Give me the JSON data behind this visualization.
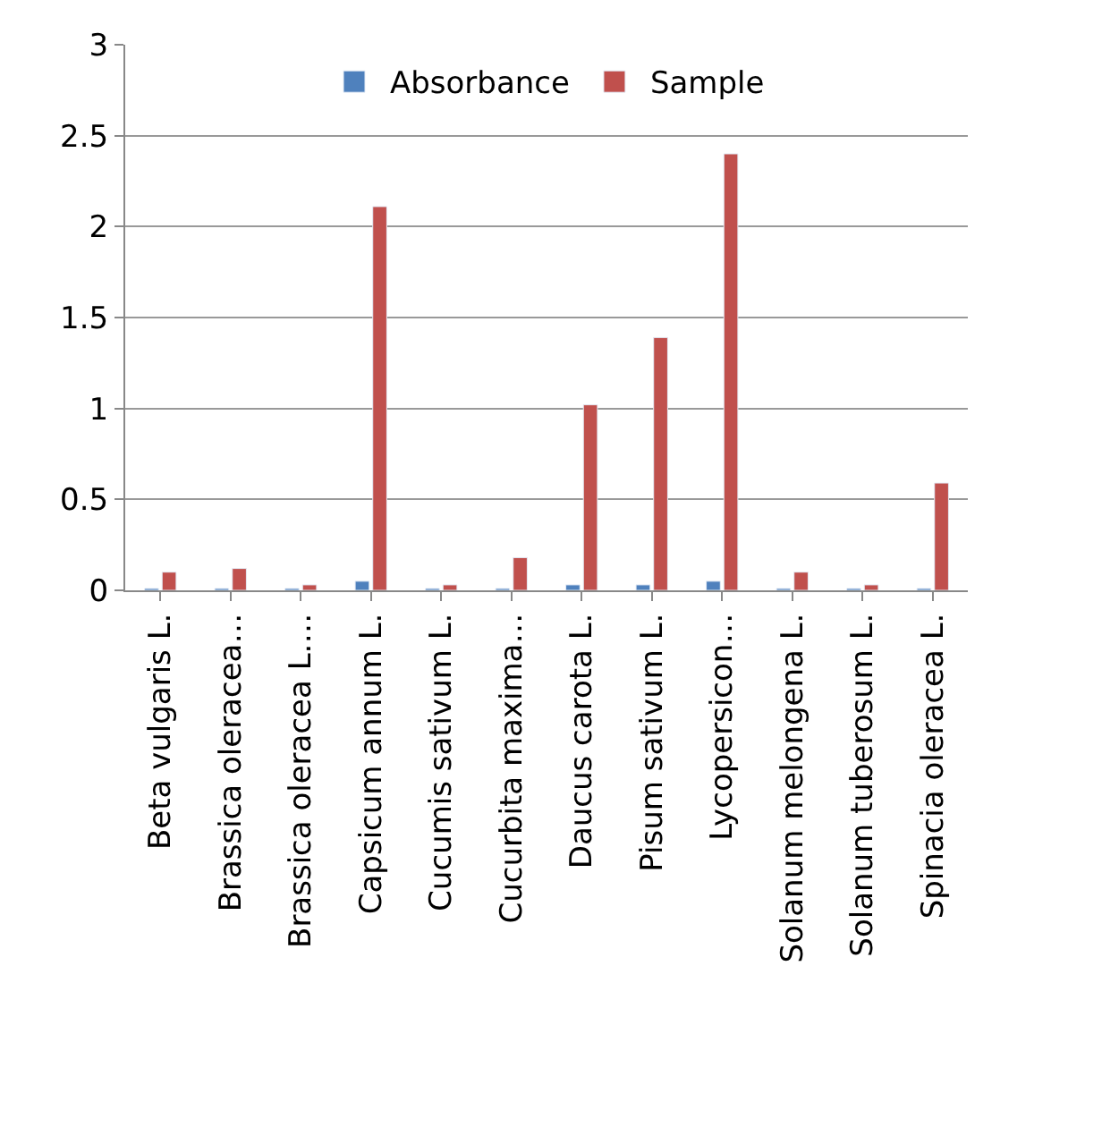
{
  "chart_data": {
    "type": "bar",
    "categories": [
      "Beta vulgaris L.",
      "Brassica oleracea…",
      "Brassica oleracea L.…",
      "Capsicum annum L.",
      "Cucumis sativum L.",
      "Cucurbita maxima…",
      "Daucus carota L.",
      "Pisum sativum L.",
      "Lycopersicon…",
      "Solanum melongena L.",
      "Solanum tuberosum L.",
      "Spinacia oleracea L."
    ],
    "series": [
      {
        "name": "Absorbance",
        "color": "#4f81bd",
        "values": [
          0.01,
          0.01,
          0.01,
          0.05,
          0.01,
          0.01,
          0.03,
          0.03,
          0.05,
          0.01,
          0.01,
          0.01
        ]
      },
      {
        "name": "Sample",
        "color": "#c0504d",
        "values": [
          0.1,
          0.12,
          0.03,
          2.11,
          0.03,
          0.18,
          1.02,
          1.39,
          2.4,
          0.1,
          0.03,
          0.59
        ]
      }
    ],
    "ylim": [
      0,
      3
    ],
    "yticks": [
      0,
      0.5,
      1,
      1.5,
      2,
      2.5,
      3
    ],
    "grid": "y",
    "legend": "top"
  }
}
